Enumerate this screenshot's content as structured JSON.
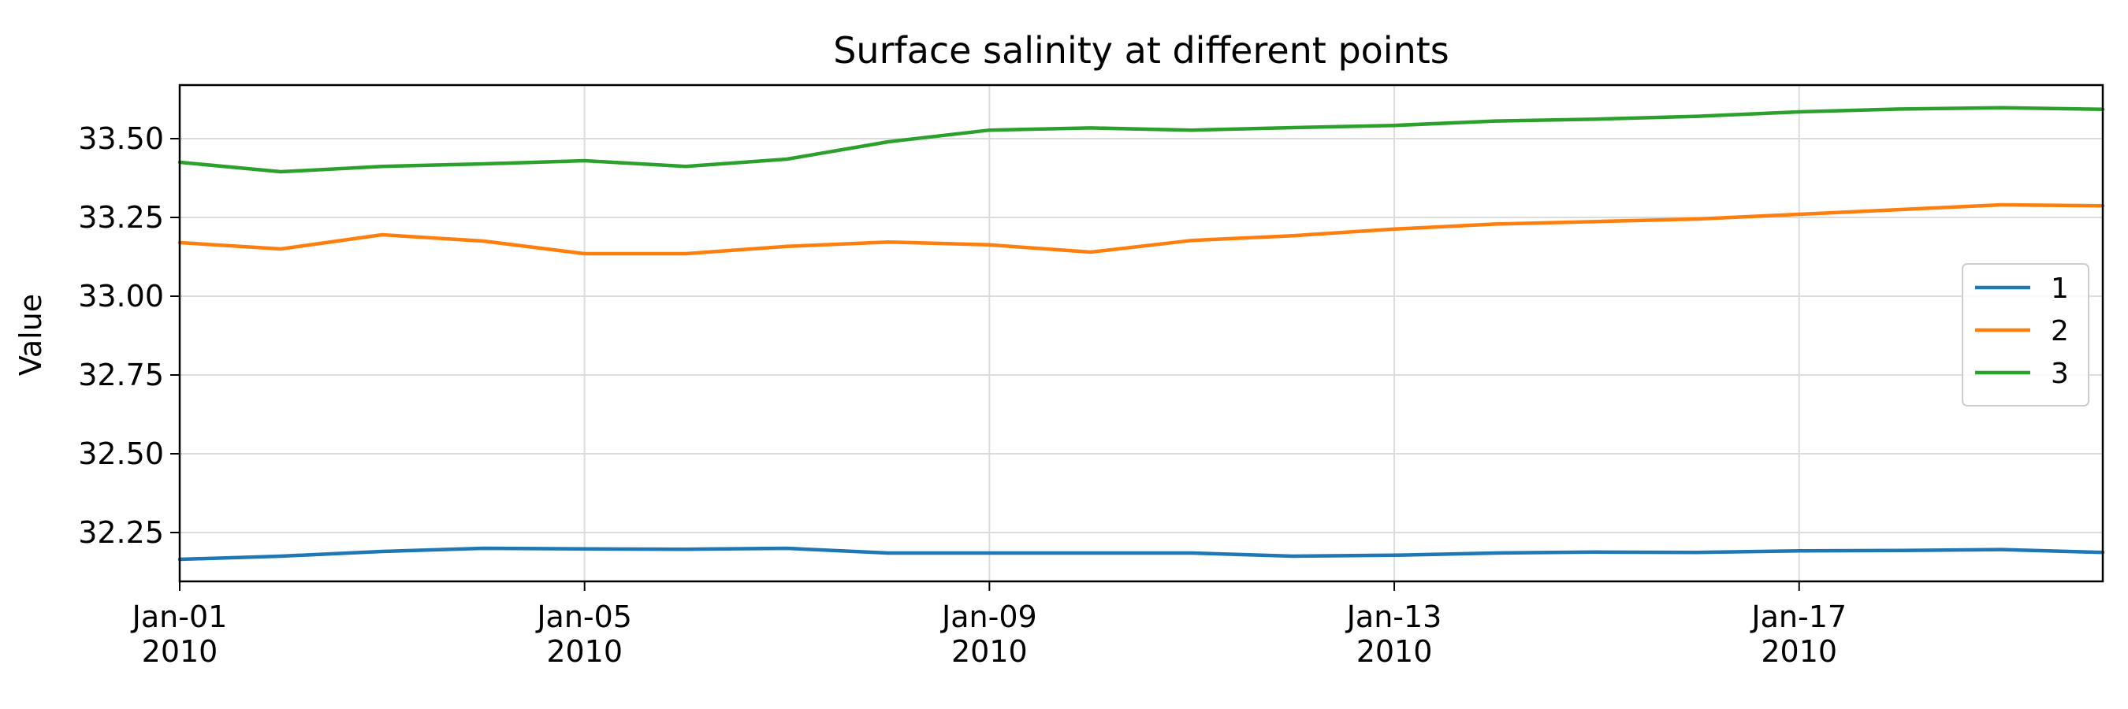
{
  "chart_data": {
    "type": "line",
    "title": "Surface salinity at different points",
    "xlabel": "",
    "ylabel": "Value",
    "x": [
      "2010-01-01",
      "2010-01-02",
      "2010-01-03",
      "2010-01-04",
      "2010-01-05",
      "2010-01-06",
      "2010-01-07",
      "2010-01-08",
      "2010-01-09",
      "2010-01-10",
      "2010-01-11",
      "2010-01-12",
      "2010-01-13",
      "2010-01-14",
      "2010-01-15",
      "2010-01-16",
      "2010-01-17",
      "2010-01-18",
      "2010-01-19",
      "2010-01-20"
    ],
    "xlim": [
      "2010-01-01",
      "2010-01-20"
    ],
    "ylim": [
      32.095,
      33.67
    ],
    "x_ticks": [
      {
        "date": "2010-01-01",
        "line1": "Jan-01",
        "line2": "2010"
      },
      {
        "date": "2010-01-05",
        "line1": "Jan-05",
        "line2": "2010"
      },
      {
        "date": "2010-01-09",
        "line1": "Jan-09",
        "line2": "2010"
      },
      {
        "date": "2010-01-13",
        "line1": "Jan-13",
        "line2": "2010"
      },
      {
        "date": "2010-01-17",
        "line1": "Jan-17",
        "line2": "2010"
      }
    ],
    "y_ticks": [
      {
        "value": 32.25,
        "label": "32.25"
      },
      {
        "value": 32.5,
        "label": "32.50"
      },
      {
        "value": 32.75,
        "label": "32.75"
      },
      {
        "value": 33.0,
        "label": "33.00"
      },
      {
        "value": 33.25,
        "label": "33.25"
      },
      {
        "value": 33.5,
        "label": "33.50"
      }
    ],
    "grid": true,
    "legend_position": "right",
    "series": [
      {
        "name": "1",
        "color": "#1f77b4",
        "values": [
          32.165,
          32.175,
          32.19,
          32.2,
          32.198,
          32.197,
          32.2,
          32.185,
          32.185,
          32.185,
          32.185,
          32.175,
          32.178,
          32.185,
          32.188,
          32.187,
          32.192,
          32.193,
          32.196,
          32.187
        ]
      },
      {
        "name": "2",
        "color": "#ff7f0e",
        "values": [
          33.17,
          33.15,
          33.195,
          33.175,
          33.135,
          33.135,
          33.158,
          33.172,
          33.163,
          33.14,
          33.177,
          33.192,
          33.213,
          33.229,
          33.237,
          33.245,
          33.26,
          33.275,
          33.29,
          33.287
        ]
      },
      {
        "name": "3",
        "color": "#2ca02c",
        "values": [
          33.425,
          33.395,
          33.412,
          33.42,
          33.43,
          33.412,
          33.435,
          33.49,
          33.527,
          33.534,
          33.527,
          33.535,
          33.542,
          33.556,
          33.562,
          33.571,
          33.585,
          33.594,
          33.598,
          33.593
        ]
      }
    ]
  }
}
